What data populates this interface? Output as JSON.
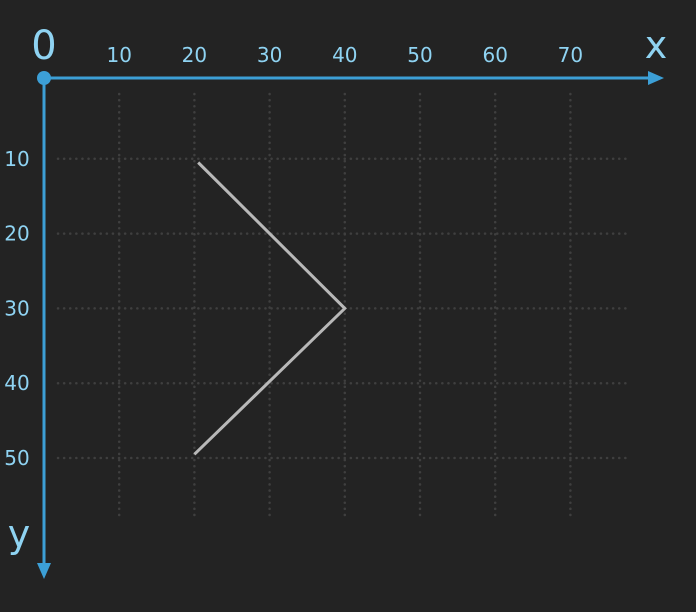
{
  "diagram": {
    "origin_label": "0",
    "x_axis_label": "x",
    "y_axis_label": "y",
    "x_ticks": [
      "10",
      "20",
      "30",
      "40",
      "50",
      "60",
      "70"
    ],
    "y_ticks": [
      "10",
      "20",
      "30",
      "40",
      "50"
    ],
    "colors": {
      "background": "#232323",
      "axis": "#3c9fd6",
      "label": "#8fd3f2",
      "grid": "#3f3f3f",
      "polyline": "#b8b8b8"
    }
  },
  "chart_data": {
    "type": "line",
    "grid": true,
    "y_axis_direction": "down",
    "series": [
      {
        "x": [
          20.5,
          40,
          20
        ],
        "y": [
          10.5,
          30,
          49.5
        ]
      }
    ]
  }
}
